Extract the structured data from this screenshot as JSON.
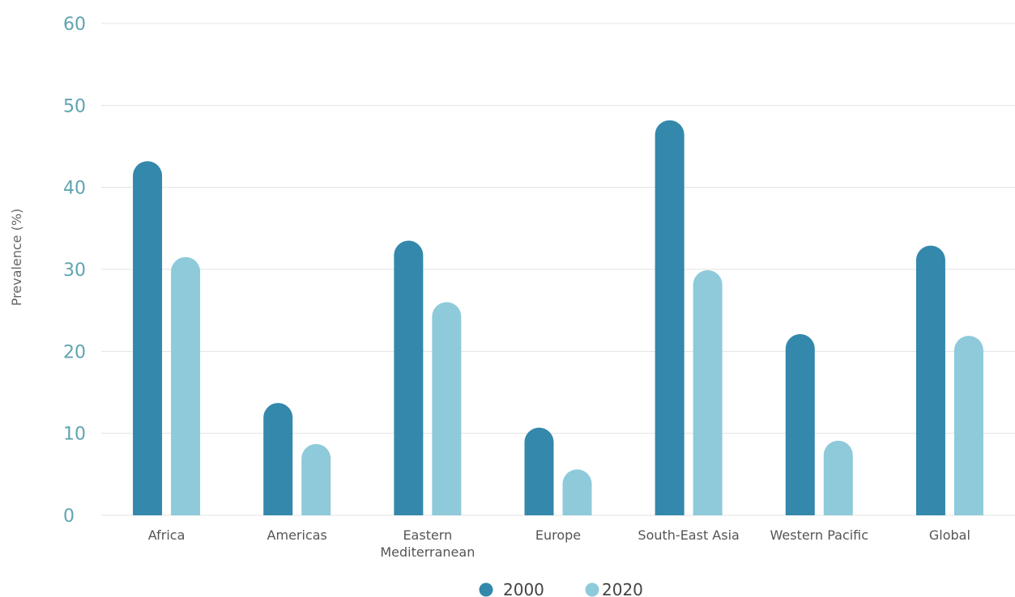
{
  "chart_data": {
    "type": "bar",
    "ylabel": "Prevalence (%)",
    "xlabel": "",
    "ylim": [
      0,
      60
    ],
    "yticks": [
      "0",
      "10",
      "20",
      "30",
      "40",
      "50",
      "60"
    ],
    "grid": true,
    "legend_position": "bottom",
    "categories": [
      [
        "Africa"
      ],
      [
        "Americas"
      ],
      [
        "Eastern",
        "Mediterranean"
      ],
      [
        "Europe"
      ],
      [
        "South-East Asia"
      ],
      [
        "Western Pacific"
      ],
      [
        "Global"
      ]
    ],
    "series": [
      {
        "name": "2000",
        "color": "#3388ab",
        "values": [
          43.2,
          13.7,
          33.5,
          10.7,
          48.2,
          22.1,
          32.9
        ]
      },
      {
        "name": "2020",
        "color": "#8ecada",
        "values": [
          31.5,
          8.7,
          26.0,
          5.6,
          29.9,
          9.1,
          21.9
        ]
      }
    ]
  }
}
